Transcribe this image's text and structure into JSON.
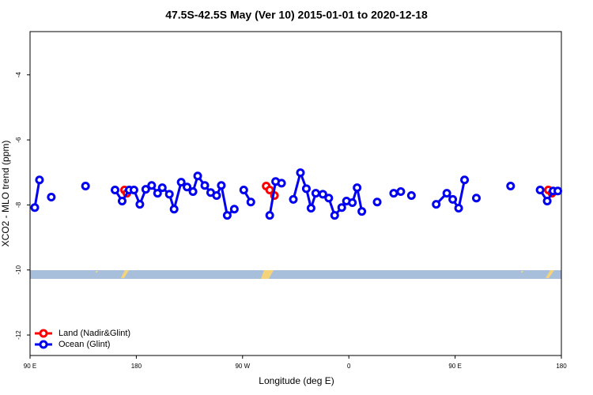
{
  "chart_data": {
    "type": "line",
    "title": "47.5S-42.5S May (Ver 10)   2015-01-01 to 2020-12-18",
    "x_label": "Longitude (deg E)",
    "y_label": "XCO2 - MLO trend (ppm)",
    "xlim": [
      90,
      540
    ],
    "xticks": [
      {
        "value": 90,
        "label": "90 E"
      },
      180,
      {
        "value": 270,
        "label": "90 W"
      },
      {
        "value": 360,
        "label": "0"
      },
      {
        "value": 450,
        "label": "90 E"
      },
      {
        "value": 540,
        "label": "180"
      }
    ],
    "ylim": [
      -12.63,
      -2.67
    ],
    "yticks": [
      -4,
      -6,
      -8,
      -10,
      -12
    ],
    "legend": "bottom-left",
    "series": [
      {
        "name": "Land (Nadir&Glint)",
        "color": "#ff0000",
        "x": [
          170,
          172,
          null,
          290,
          293,
          297,
          null,
          529,
          532
        ],
        "values": [
          -7.54,
          -7.64,
          null,
          -7.42,
          -7.54,
          -7.71,
          null,
          -7.54,
          -7.64
        ]
      },
      {
        "name": "Ocean (Glint)",
        "color": "#0000ee",
        "x": [
          94,
          98,
          null,
          108,
          null,
          137,
          null,
          162,
          168,
          174,
          178,
          183,
          188,
          193,
          198,
          202,
          208,
          212,
          218,
          223,
          228,
          232,
          238,
          243,
          248,
          252,
          257,
          263,
          null,
          271,
          277,
          null,
          293,
          298,
          303,
          null,
          313,
          319,
          324,
          328,
          332,
          338,
          343,
          348,
          354,
          358,
          363,
          367,
          371,
          null,
          384,
          null,
          398,
          404,
          null,
          413,
          null,
          434,
          443,
          448,
          453,
          458,
          null,
          468,
          null,
          497,
          null,
          522,
          528,
          533,
          537
        ],
        "values": [
          -8.08,
          -7.23,
          null,
          -7.76,
          null,
          -7.42,
          null,
          -7.54,
          -7.88,
          -7.54,
          -7.54,
          -7.98,
          -7.52,
          -7.4,
          -7.64,
          -7.47,
          -7.67,
          -8.13,
          -7.3,
          -7.45,
          -7.59,
          -7.11,
          -7.4,
          -7.62,
          -7.71,
          -7.4,
          -8.32,
          -8.13,
          null,
          -7.54,
          -7.91,
          null,
          -8.32,
          -7.28,
          -7.33,
          null,
          -7.83,
          -7.01,
          -7.5,
          -8.1,
          -7.64,
          -7.67,
          -7.79,
          -8.32,
          -8.08,
          -7.88,
          -7.93,
          -7.47,
          -8.2,
          null,
          -7.91,
          null,
          -7.64,
          -7.59,
          null,
          -7.71,
          null,
          -7.98,
          -7.64,
          -7.83,
          -8.1,
          -7.23,
          null,
          -7.79,
          null,
          -7.42,
          null,
          -7.54,
          -7.88,
          -7.57,
          -7.57
        ]
      }
    ]
  }
}
